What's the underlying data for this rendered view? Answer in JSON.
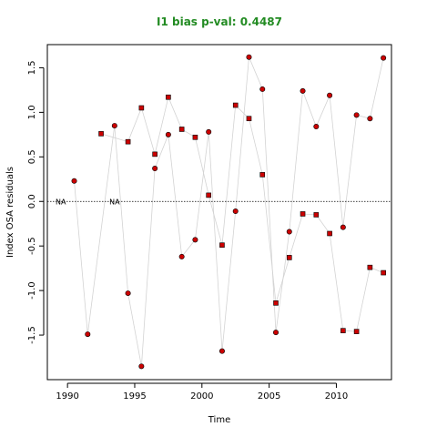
{
  "chart_data": {
    "type": "scatter",
    "title": "I1 bias p-val: 0.4487",
    "title_color": "#228b22",
    "xlabel": "Time",
    "ylabel": "Index OSA residuals",
    "xlim": [
      1988.5,
      2014.1
    ],
    "ylim": [
      -2.0,
      1.76
    ],
    "x_ticks": [
      "1990",
      "1995",
      "2000",
      "2005",
      "2010"
    ],
    "y_ticks": [
      "-1.5",
      "-1.0",
      "-0.5",
      "0.0",
      "0.5",
      "1.0",
      "1.5"
    ],
    "reference_line": 0,
    "na_label": "NA",
    "na_positions": [
      1989.5,
      1993.5
    ],
    "line_color": "#d3d3d3",
    "point_fill": "#cc0000",
    "point_stroke": "#000000",
    "series": [
      {
        "marker": "circle",
        "points": [
          [
            1990.5,
            0.23
          ],
          [
            1991.5,
            -1.49
          ],
          [
            1993.5,
            0.85
          ],
          [
            1994.5,
            -1.03
          ],
          [
            1995.5,
            -1.85
          ],
          [
            1996.5,
            0.37
          ],
          [
            1997.5,
            0.75
          ],
          [
            1998.5,
            -0.62
          ],
          [
            1999.5,
            -0.43
          ],
          [
            2000.5,
            0.78
          ],
          [
            2001.5,
            -1.68
          ],
          [
            2002.5,
            -0.11
          ],
          [
            2003.5,
            1.62
          ],
          [
            2004.5,
            1.26
          ],
          [
            2005.5,
            -1.47
          ],
          [
            2006.5,
            -0.34
          ],
          [
            2007.5,
            1.24
          ],
          [
            2008.5,
            0.84
          ],
          [
            2009.5,
            1.19
          ],
          [
            2010.5,
            -0.29
          ],
          [
            2011.5,
            0.97
          ],
          [
            2012.5,
            0.93
          ],
          [
            2013.5,
            1.61
          ]
        ]
      },
      {
        "marker": "square",
        "points": [
          [
            1992.5,
            0.76
          ],
          [
            1994.5,
            0.67
          ],
          [
            1995.5,
            1.05
          ],
          [
            1996.5,
            0.53
          ],
          [
            1997.5,
            1.17
          ],
          [
            1998.5,
            0.81
          ],
          [
            1999.5,
            0.72
          ],
          [
            2000.5,
            0.07
          ],
          [
            2001.5,
            -0.49
          ],
          [
            2002.5,
            1.08
          ],
          [
            2003.5,
            0.93
          ],
          [
            2004.5,
            0.3
          ],
          [
            2005.5,
            -1.14
          ],
          [
            2006.5,
            -0.63
          ],
          [
            2007.5,
            -0.14
          ],
          [
            2008.5,
            -0.15
          ],
          [
            2009.5,
            -0.36
          ],
          [
            2010.5,
            -1.45
          ],
          [
            2011.5,
            -1.46
          ],
          [
            2012.5,
            -0.74
          ],
          [
            2013.5,
            -0.8
          ]
        ]
      }
    ]
  }
}
